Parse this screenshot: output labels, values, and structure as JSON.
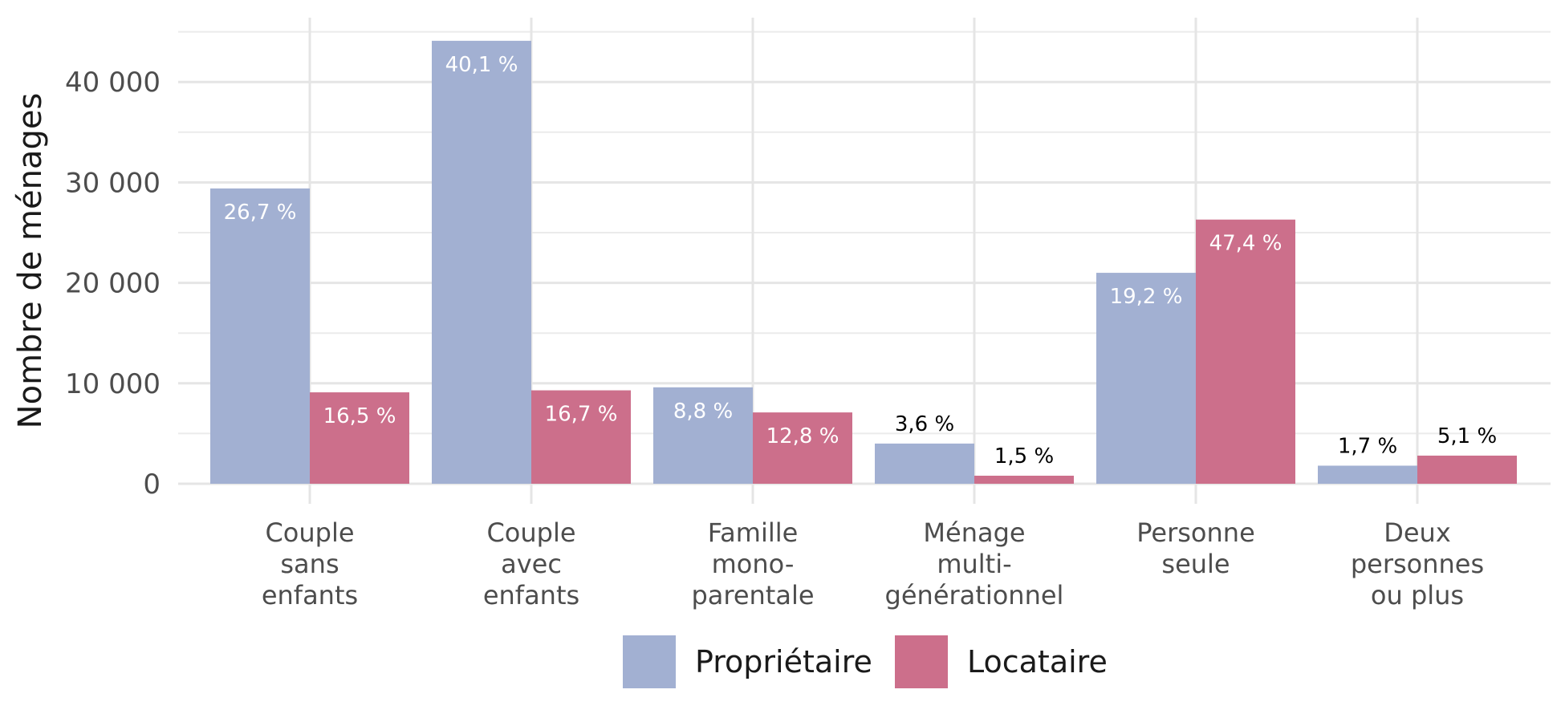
{
  "chart_data": {
    "type": "bar",
    "title": "",
    "xlabel": "",
    "ylabel": "Nombre de ménages",
    "ylim": [
      0,
      45000
    ],
    "yticks": [
      0,
      10000,
      20000,
      30000,
      40000
    ],
    "ytick_labels": [
      "0",
      "10 000",
      "20 000",
      "30 000",
      "40 000"
    ],
    "grid": true,
    "legend_position": "bottom",
    "categories": [
      [
        "Couple",
        "sans",
        "enfants"
      ],
      [
        "Couple",
        "avec",
        "enfants"
      ],
      [
        "Famille",
        "mono-",
        "parentale"
      ],
      [
        "Ménage",
        "multi-",
        "générationnel"
      ],
      [
        "Personne",
        "seule"
      ],
      [
        "Deux",
        "personnes",
        "ou plus"
      ]
    ],
    "series": [
      {
        "name": "Propriétaire",
        "color": "#a2b0d2",
        "values": [
          29400,
          44100,
          9600,
          4000,
          21000,
          1800
        ],
        "labels": [
          "26,7 %",
          "40,1 %",
          "8,8 %",
          "3,6 %",
          "19,2 %",
          "1,7 %"
        ]
      },
      {
        "name": "Locataire",
        "color": "#cc6f8b",
        "values": [
          9100,
          9300,
          7100,
          800,
          26300,
          2800
        ],
        "labels": [
          "16,5 %",
          "16,7 %",
          "12,8 %",
          "1,5 %",
          "47,4 %",
          "5,1 %"
        ]
      }
    ]
  }
}
